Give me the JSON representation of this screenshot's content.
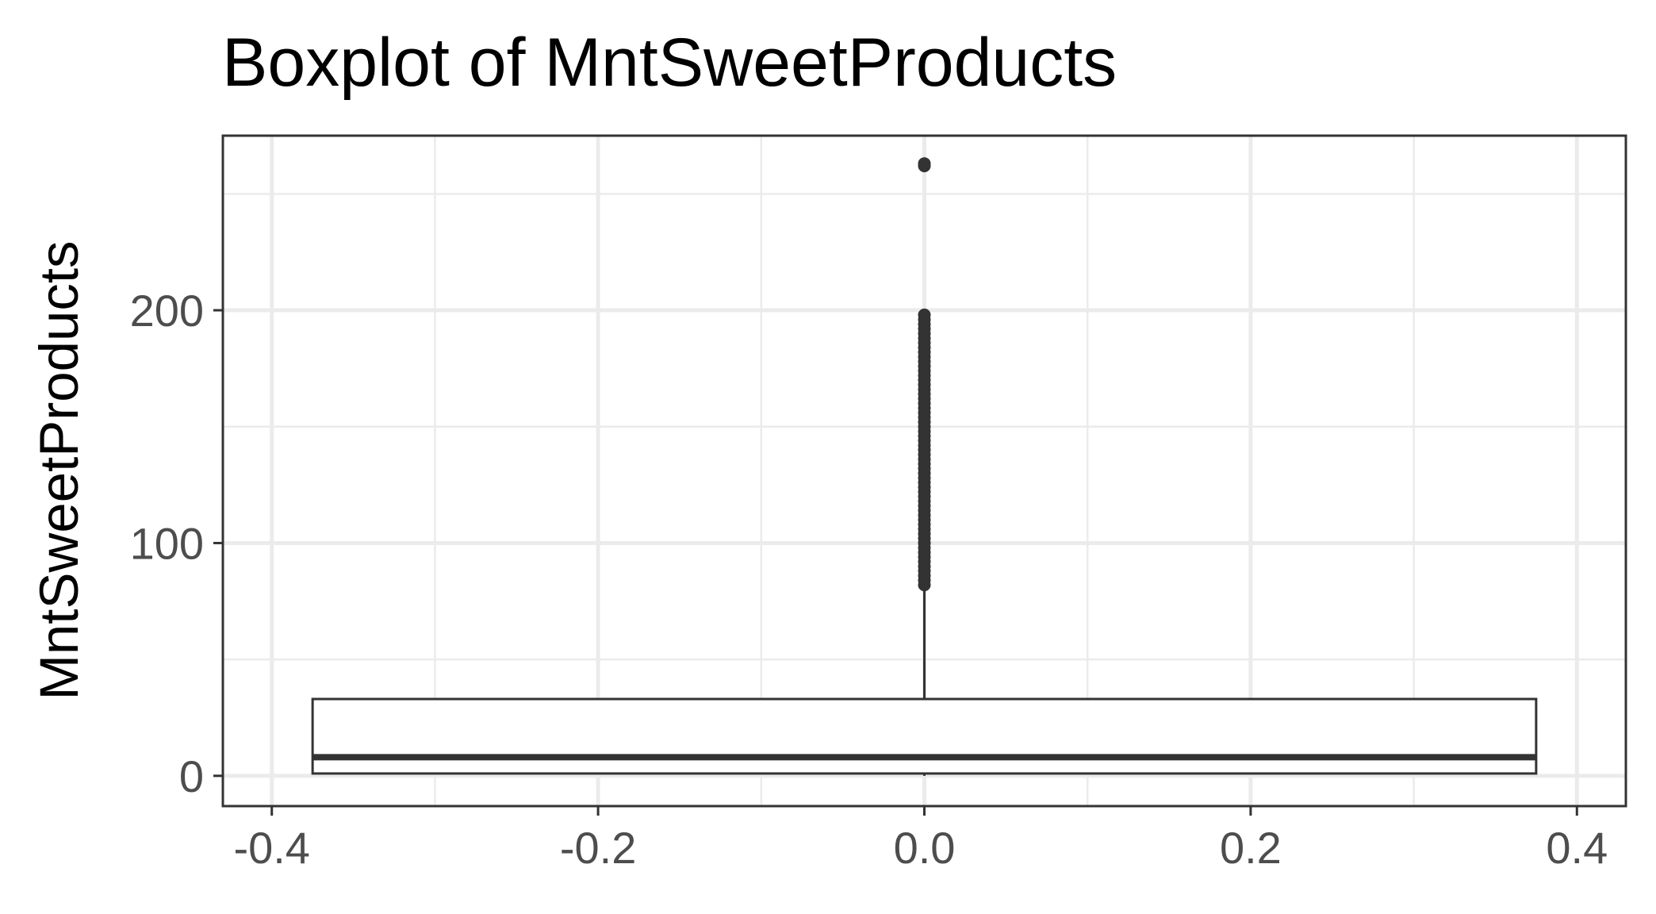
{
  "chart_data": {
    "type": "boxplot",
    "title": "Boxplot of MntSweetProducts",
    "xlabel": "",
    "ylabel": "MntSweetProducts",
    "xlim": [
      -0.43,
      0.43
    ],
    "ylim": [
      -13,
      275
    ],
    "x_ticks": [
      -0.4,
      -0.2,
      0.0,
      0.2,
      0.4
    ],
    "x_tick_labels": [
      "-0.4",
      "-0.2",
      "0.0",
      "0.2",
      "0.4"
    ],
    "y_ticks": [
      0,
      100,
      200
    ],
    "y_tick_labels": [
      "0",
      "100",
      "200"
    ],
    "grid": true,
    "box": {
      "x": 0.0,
      "x_extent": [
        -0.375,
        0.375
      ],
      "q1": 1,
      "median": 8,
      "q3": 33,
      "whisker_low": 0,
      "whisker_high": 81
    },
    "outliers": [
      82,
      84,
      86,
      88,
      90,
      92,
      94,
      96,
      98,
      100,
      102,
      104,
      106,
      108,
      110,
      112,
      114,
      116,
      118,
      120,
      122,
      124,
      126,
      128,
      130,
      132,
      134,
      136,
      138,
      140,
      142,
      144,
      146,
      148,
      150,
      152,
      154,
      156,
      158,
      160,
      162,
      164,
      166,
      168,
      170,
      172,
      174,
      176,
      178,
      180,
      182,
      184,
      186,
      188,
      190,
      192,
      194,
      196,
      198,
      262,
      263
    ],
    "colors": {
      "box_fill": "#ffffff",
      "box_stroke": "#333333",
      "grid": "#ebebeb",
      "tick_text": "#4d4d4d",
      "title_text": "#000000"
    }
  }
}
